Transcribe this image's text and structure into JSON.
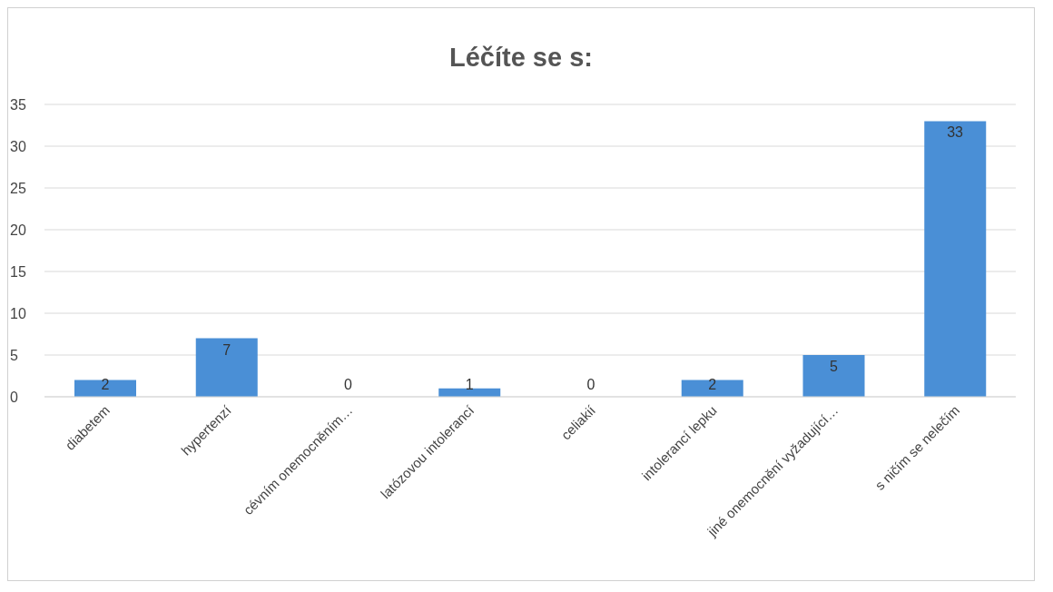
{
  "chart_data": {
    "type": "bar",
    "title": "Léčíte se s:",
    "categories": [
      "diabetem",
      "hypertenzí",
      "cévním onemocněním…",
      "latózovou intolerancí",
      "celiakií",
      "intolerancí lepku",
      "jiné onemocnění vyžadující…",
      "s ničím se nelečím"
    ],
    "values": [
      2,
      7,
      0,
      1,
      0,
      2,
      5,
      33
    ],
    "color": "#4a8fd6",
    "ylim": [
      0,
      35
    ],
    "yticks": [
      0,
      5,
      10,
      15,
      20,
      25,
      30,
      35
    ],
    "grid": "y",
    "data_labels": true
  }
}
